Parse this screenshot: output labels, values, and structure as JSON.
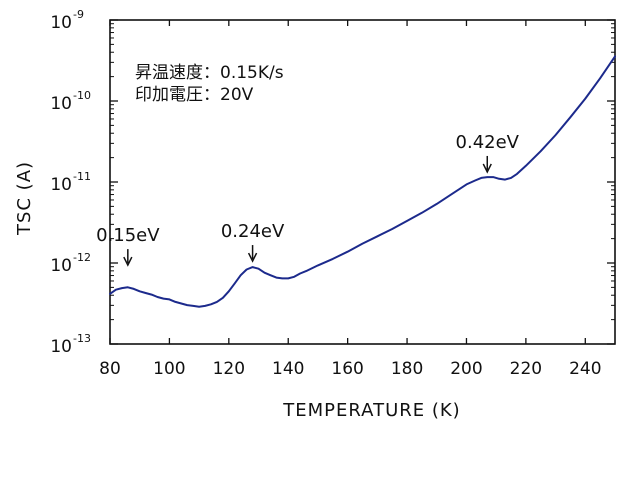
{
  "chart_data": {
    "type": "line",
    "title": "",
    "xlabel": "TEMPERATURE (K)",
    "ylabel": "TSC (A)",
    "xlim": [
      80,
      250
    ],
    "ylim_log10": [
      -13,
      -9
    ],
    "yscale": "log",
    "x_ticks": [
      80,
      100,
      120,
      140,
      160,
      180,
      200,
      220,
      240
    ],
    "y_ticks": [
      {
        "base": "10",
        "exp": "-13",
        "value": -13
      },
      {
        "base": "10",
        "exp": "-12",
        "value": -12
      },
      {
        "base": "10",
        "exp": "-11",
        "value": -11
      },
      {
        "base": "10",
        "exp": "-10",
        "value": -10
      },
      {
        "base": "10",
        "exp": "-9",
        "value": -9
      }
    ],
    "grid": false,
    "line_color": "#1c2a8c",
    "conditions": [
      "昇温速度：0.15K/s",
      "印加電圧：20V"
    ],
    "annotations": [
      {
        "text": "0.15eV",
        "x": 86,
        "y": -12.1
      },
      {
        "text": "0.24eV",
        "x": 128,
        "y": -12.05
      },
      {
        "text": "0.42eV",
        "x": 207,
        "y": -10.95
      }
    ],
    "series": [
      {
        "x": [
          80,
          82,
          84,
          86,
          88,
          90,
          92,
          94,
          96,
          98,
          100,
          102,
          104,
          106,
          108,
          110,
          112,
          114,
          116,
          118,
          120,
          122,
          124,
          126,
          128,
          130,
          132,
          134,
          136,
          138,
          140,
          142,
          144,
          146,
          150,
          155,
          160,
          165,
          170,
          175,
          180,
          185,
          190,
          195,
          200,
          203,
          205,
          207,
          209,
          211,
          213,
          215,
          217,
          220,
          225,
          230,
          235,
          240,
          245,
          250
        ],
        "y_log10": [
          -12.38,
          -12.33,
          -12.31,
          -12.3,
          -12.32,
          -12.35,
          -12.37,
          -12.39,
          -12.42,
          -12.44,
          -12.45,
          -12.48,
          -12.5,
          -12.52,
          -12.53,
          -12.54,
          -12.53,
          -12.51,
          -12.48,
          -12.43,
          -12.35,
          -12.25,
          -12.15,
          -12.08,
          -12.05,
          -12.07,
          -12.12,
          -12.15,
          -12.18,
          -12.19,
          -12.19,
          -12.17,
          -12.13,
          -12.1,
          -12.03,
          -11.95,
          -11.86,
          -11.76,
          -11.67,
          -11.58,
          -11.48,
          -11.38,
          -11.27,
          -11.15,
          -11.03,
          -10.98,
          -10.95,
          -10.94,
          -10.94,
          -10.96,
          -10.97,
          -10.95,
          -10.9,
          -10.8,
          -10.62,
          -10.42,
          -10.2,
          -9.97,
          -9.72,
          -9.45
        ]
      }
    ]
  }
}
